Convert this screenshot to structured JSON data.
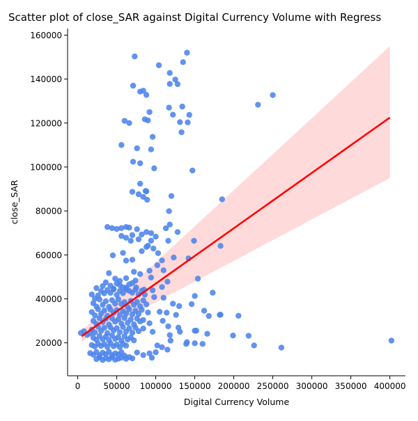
{
  "chart_data": {
    "type": "scatter",
    "title": "Scatter plot of close_SAR against Digital Currency Volume with Regress",
    "xlabel": "Digital Currency Volume",
    "ylabel": "close_SAR",
    "xlim": [
      -13000,
      420000
    ],
    "ylim": [
      5000,
      163000
    ],
    "xticks": [
      0,
      50000,
      100000,
      150000,
      200000,
      250000,
      300000,
      350000,
      400000
    ],
    "yticks": [
      20000,
      40000,
      60000,
      80000,
      100000,
      120000,
      140000,
      160000
    ],
    "grid": false,
    "legend": "none",
    "colors": {
      "points": "#4c84ec",
      "regression_line": "#ff0000",
      "confidence_band": "#ffd6d6"
    },
    "regression": {
      "x": [
        5000,
        400000
      ],
      "y": [
        23000,
        122500
      ],
      "ci_low": [
        20500,
        95000
      ],
      "ci_high": [
        25500,
        155000
      ]
    },
    "points": [
      [
        73000,
        150300
      ],
      [
        104000,
        146300
      ],
      [
        135000,
        147700
      ],
      [
        140000,
        152000
      ],
      [
        71000,
        137000
      ],
      [
        118000,
        142800
      ],
      [
        125000,
        139800
      ],
      [
        128000,
        137700
      ],
      [
        118000,
        137800
      ],
      [
        80000,
        134300
      ],
      [
        84000,
        134700
      ],
      [
        88000,
        132800
      ],
      [
        231000,
        128300
      ],
      [
        250000,
        132700
      ],
      [
        134000,
        127500
      ],
      [
        117000,
        127000
      ],
      [
        92000,
        125000
      ],
      [
        122000,
        123800
      ],
      [
        143000,
        123700
      ],
      [
        60000,
        121000
      ],
      [
        66000,
        120000
      ],
      [
        86000,
        121700
      ],
      [
        90000,
        121200
      ],
      [
        131000,
        120400
      ],
      [
        141000,
        120300
      ],
      [
        133000,
        115800
      ],
      [
        96000,
        113700
      ],
      [
        56000,
        110000
      ],
      [
        76000,
        108500
      ],
      [
        94000,
        108000
      ],
      [
        71000,
        102400
      ],
      [
        80000,
        101700
      ],
      [
        98000,
        99400
      ],
      [
        147000,
        98400
      ],
      [
        80000,
        92400
      ],
      [
        87000,
        89100
      ],
      [
        70000,
        88700
      ],
      [
        88000,
        88900
      ],
      [
        120000,
        86800
      ],
      [
        185000,
        85300
      ],
      [
        78000,
        87600
      ],
      [
        84000,
        86400
      ],
      [
        89000,
        85100
      ],
      [
        117000,
        79900
      ],
      [
        118000,
        73800
      ],
      [
        128000,
        70400
      ],
      [
        113000,
        72100
      ],
      [
        183000,
        64100
      ],
      [
        38000,
        72700
      ],
      [
        44000,
        72200
      ],
      [
        50000,
        71800
      ],
      [
        56000,
        72200
      ],
      [
        62000,
        72700
      ],
      [
        66000,
        72400
      ],
      [
        70000,
        69000
      ],
      [
        76000,
        71700
      ],
      [
        82000,
        69300
      ],
      [
        88000,
        70400
      ],
      [
        94000,
        69900
      ],
      [
        100000,
        68300
      ],
      [
        56000,
        68600
      ],
      [
        62000,
        67800
      ],
      [
        68000,
        66400
      ],
      [
        78000,
        67100
      ],
      [
        90000,
        64200
      ],
      [
        97000,
        62900
      ],
      [
        58000,
        60900
      ],
      [
        45000,
        59800
      ],
      [
        62000,
        57400
      ],
      [
        70000,
        57800
      ],
      [
        82000,
        61700
      ],
      [
        88000,
        63600
      ],
      [
        94000,
        66500
      ],
      [
        103000,
        60800
      ],
      [
        108000,
        57500
      ],
      [
        116000,
        66400
      ],
      [
        123000,
        58800
      ],
      [
        142000,
        58400
      ],
      [
        149000,
        66400
      ],
      [
        40000,
        51700
      ],
      [
        48000,
        49200
      ],
      [
        54000,
        48200
      ],
      [
        62000,
        49400
      ],
      [
        72000,
        52300
      ],
      [
        80000,
        51300
      ],
      [
        92000,
        52800
      ],
      [
        102000,
        55300
      ],
      [
        110000,
        53000
      ],
      [
        94000,
        49700
      ],
      [
        75000,
        45200
      ],
      [
        85000,
        44200
      ],
      [
        115000,
        47800
      ],
      [
        108000,
        45400
      ],
      [
        96000,
        43900
      ],
      [
        150000,
        41300
      ],
      [
        154000,
        49200
      ],
      [
        173000,
        42800
      ],
      [
        98000,
        40800
      ],
      [
        110000,
        40500
      ],
      [
        122000,
        37800
      ],
      [
        130000,
        36700
      ],
      [
        146000,
        37600
      ],
      [
        162000,
        34600
      ],
      [
        105000,
        34100
      ],
      [
        114000,
        33700
      ],
      [
        126000,
        32700
      ],
      [
        168000,
        32200
      ],
      [
        183000,
        32800
      ],
      [
        206000,
        32300
      ],
      [
        182000,
        32700
      ],
      [
        109000,
        30000
      ],
      [
        116000,
        27500
      ],
      [
        129000,
        26900
      ],
      [
        131000,
        25000
      ],
      [
        150000,
        25500
      ],
      [
        152000,
        25500
      ],
      [
        166000,
        24100
      ],
      [
        199000,
        23300
      ],
      [
        219000,
        23200
      ],
      [
        118000,
        23500
      ],
      [
        119000,
        21000
      ],
      [
        102000,
        18800
      ],
      [
        108000,
        18000
      ],
      [
        115000,
        16900
      ],
      [
        139000,
        19500
      ],
      [
        140000,
        20300
      ],
      [
        150000,
        19800
      ],
      [
        160000,
        19500
      ],
      [
        226000,
        18800
      ],
      [
        261000,
        17800
      ],
      [
        402000,
        21000
      ],
      [
        18000,
        42000
      ],
      [
        22000,
        40000
      ],
      [
        26000,
        41500
      ],
      [
        30000,
        43500
      ],
      [
        34000,
        42500
      ],
      [
        38000,
        44000
      ],
      [
        42000,
        42700
      ],
      [
        46000,
        44300
      ],
      [
        50000,
        41800
      ],
      [
        54000,
        43600
      ],
      [
        58000,
        42600
      ],
      [
        62000,
        44200
      ],
      [
        66000,
        43600
      ],
      [
        70000,
        42800
      ],
      [
        74000,
        44200
      ],
      [
        78000,
        42000
      ],
      [
        82000,
        43700
      ],
      [
        86000,
        41900
      ],
      [
        20000,
        38000
      ],
      [
        24000,
        36500
      ],
      [
        28000,
        39700
      ],
      [
        32000,
        37300
      ],
      [
        36000,
        38900
      ],
      [
        40000,
        36400
      ],
      [
        44000,
        39400
      ],
      [
        48000,
        37800
      ],
      [
        52000,
        39800
      ],
      [
        56000,
        37700
      ],
      [
        60000,
        38500
      ],
      [
        64000,
        36300
      ],
      [
        68000,
        39100
      ],
      [
        72000,
        37300
      ],
      [
        76000,
        38600
      ],
      [
        80000,
        36600
      ],
      [
        84000,
        39300
      ],
      [
        88000,
        37500
      ],
      [
        18000,
        34000
      ],
      [
        22000,
        32500
      ],
      [
        26000,
        35300
      ],
      [
        30000,
        33200
      ],
      [
        34000,
        34700
      ],
      [
        38000,
        32300
      ],
      [
        42000,
        35100
      ],
      [
        46000,
        33600
      ],
      [
        50000,
        34900
      ],
      [
        54000,
        32700
      ],
      [
        58000,
        34400
      ],
      [
        62000,
        33300
      ],
      [
        66000,
        35200
      ],
      [
        70000,
        32900
      ],
      [
        74000,
        34600
      ],
      [
        78000,
        33100
      ],
      [
        82000,
        35000
      ],
      [
        90000,
        33800
      ],
      [
        20000,
        30000
      ],
      [
        24000,
        28600
      ],
      [
        28000,
        31200
      ],
      [
        32000,
        29400
      ],
      [
        36000,
        30900
      ],
      [
        40000,
        28300
      ],
      [
        44000,
        31100
      ],
      [
        48000,
        29600
      ],
      [
        52000,
        30700
      ],
      [
        56000,
        28800
      ],
      [
        60000,
        31300
      ],
      [
        64000,
        29100
      ],
      [
        68000,
        30600
      ],
      [
        72000,
        28400
      ],
      [
        76000,
        31000
      ],
      [
        80000,
        29700
      ],
      [
        84000,
        30400
      ],
      [
        92000,
        28900
      ],
      [
        18000,
        26000
      ],
      [
        22000,
        24700
      ],
      [
        26000,
        27300
      ],
      [
        30000,
        25400
      ],
      [
        34000,
        26800
      ],
      [
        38000,
        24400
      ],
      [
        42000,
        27000
      ],
      [
        46000,
        25600
      ],
      [
        50000,
        26700
      ],
      [
        54000,
        24800
      ],
      [
        58000,
        27200
      ],
      [
        62000,
        25100
      ],
      [
        66000,
        26600
      ],
      [
        70000,
        24600
      ],
      [
        74000,
        26900
      ],
      [
        78000,
        25300
      ],
      [
        84000,
        26500
      ],
      [
        96000,
        25000
      ],
      [
        4000,
        24500
      ],
      [
        8000,
        25300
      ],
      [
        12000,
        23600
      ],
      [
        16000,
        24300
      ],
      [
        20000,
        22300
      ],
      [
        24000,
        21400
      ],
      [
        28000,
        23100
      ],
      [
        32000,
        21600
      ],
      [
        36000,
        22800
      ],
      [
        40000,
        21200
      ],
      [
        44000,
        23300
      ],
      [
        48000,
        21800
      ],
      [
        52000,
        22600
      ],
      [
        56000,
        20900
      ],
      [
        60000,
        23000
      ],
      [
        64000,
        21500
      ],
      [
        68000,
        22400
      ],
      [
        72000,
        21100
      ],
      [
        18000,
        19000
      ],
      [
        22000,
        18300
      ],
      [
        26000,
        19600
      ],
      [
        30000,
        18600
      ],
      [
        34000,
        19400
      ],
      [
        38000,
        18100
      ],
      [
        42000,
        19800
      ],
      [
        46000,
        18400
      ],
      [
        50000,
        19200
      ],
      [
        54000,
        18000
      ],
      [
        58000,
        19500
      ],
      [
        62000,
        18700
      ],
      [
        16000,
        15300
      ],
      [
        20000,
        14600
      ],
      [
        24000,
        15800
      ],
      [
        28000,
        14300
      ],
      [
        32000,
        15500
      ],
      [
        36000,
        14800
      ],
      [
        40000,
        15900
      ],
      [
        44000,
        14400
      ],
      [
        48000,
        15200
      ],
      [
        52000,
        14700
      ],
      [
        56000,
        15700
      ],
      [
        60000,
        14200
      ],
      [
        24000,
        12600
      ],
      [
        28000,
        13300
      ],
      [
        32000,
        12200
      ],
      [
        36000,
        13000
      ],
      [
        40000,
        12500
      ],
      [
        44000,
        13400
      ],
      [
        48000,
        12300
      ],
      [
        52000,
        12800
      ],
      [
        56000,
        13200
      ],
      [
        62000,
        12700
      ],
      [
        66000,
        13500
      ],
      [
        70000,
        12900
      ],
      [
        76000,
        15600
      ],
      [
        84000,
        14400
      ],
      [
        92000,
        15200
      ],
      [
        95000,
        13200
      ],
      [
        100000,
        15700
      ],
      [
        36000,
        47500
      ],
      [
        42000,
        46000
      ],
      [
        50000,
        47000
      ],
      [
        58000,
        45200
      ],
      [
        66000,
        46600
      ],
      [
        74000,
        48300
      ],
      [
        24000,
        44900
      ],
      [
        32000,
        45800
      ],
      [
        46000,
        44600
      ],
      [
        54000,
        46200
      ],
      [
        62000,
        45100
      ],
      [
        70000,
        47200
      ]
    ]
  }
}
